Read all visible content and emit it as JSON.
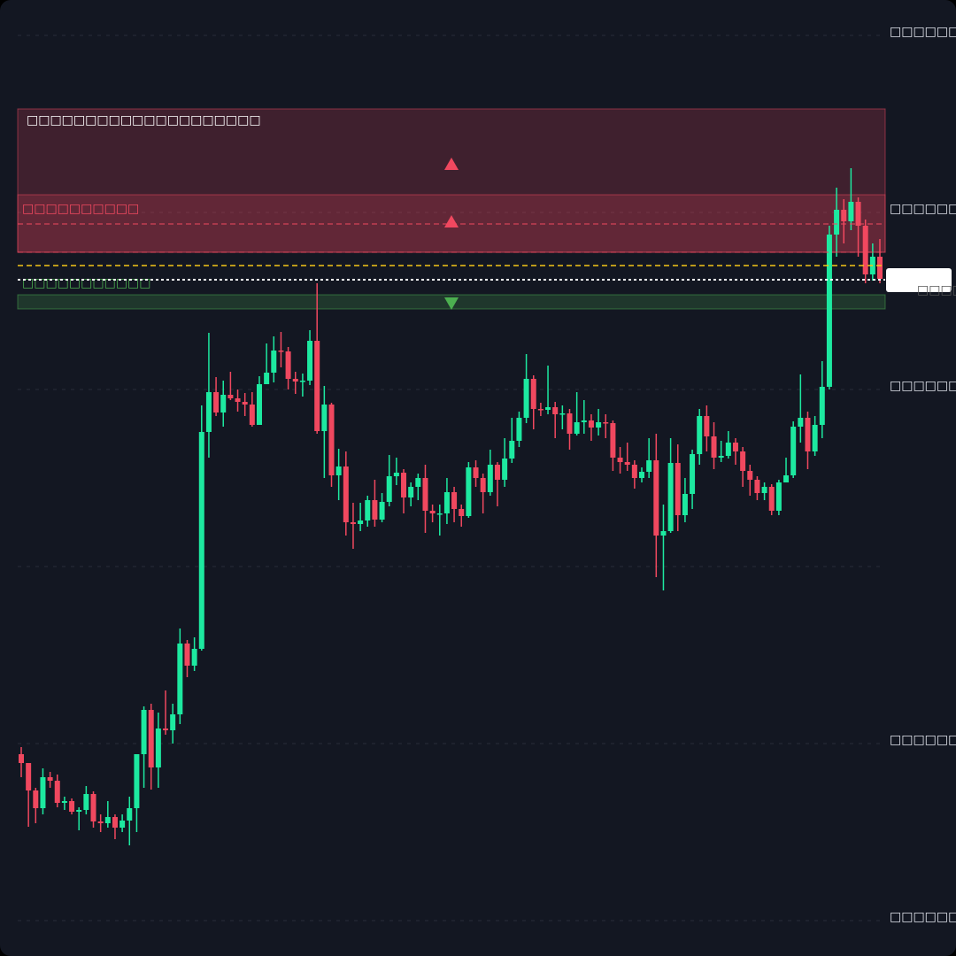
{
  "chart_data": {
    "type": "candlestick",
    "ylim": [
      0,
      1080
    ],
    "yticks": [
      {
        "value": 40,
        "label": "□□□□□□"
      },
      {
        "value": 240,
        "label": "□□□□□□"
      },
      {
        "value": 440,
        "label": null
      },
      {
        "value": 640,
        "label": "□□□□□□"
      },
      {
        "value": 840,
        "label": "□□□□□□"
      },
      {
        "value": 1040,
        "label": "□□□□□□"
      }
    ],
    "grid": true,
    "up_color": "#1de9a0",
    "down_color": "#f0485f",
    "series": [
      {
        "open": [
          228,
          218,
          187,
          167,
          202,
          198,
          173,
          175,
          163,
          165,
          183,
          152,
          150,
          157,
          145,
          153,
          167,
          228,
          278,
          213,
          257,
          255,
          273,
          353,
          328,
          347,
          592,
          637,
          614,
          634,
          630,
          626,
          623,
          600,
          646,
          659,
          684,
          683,
          652,
          649,
          650,
          695,
          593,
          623,
          543,
          553,
          490,
          488,
          492,
          515,
          493,
          513,
          542,
          546,
          518,
          530,
          540,
          503,
          500,
          500,
          524,
          505,
          497,
          552,
          540,
          524,
          555,
          538,
          562,
          582,
          608,
          652,
          618,
          617,
          620,
          612,
          613,
          590,
          603,
          605,
          597,
          603,
          602,
          563,
          558,
          555,
          540,
          547,
          560,
          475,
          480,
          557,
          498,
          522,
          567,
          610,
          587,
          563,
          565,
          580,
          570,
          548,
          538,
          523,
          530,
          503,
          535,
          543,
          598,
          608,
          570,
          600,
          643,
          815,
          843,
          830,
          852,
          825,
          770,
          790
        ],
        "close": [
          218,
          187,
          167,
          202,
          198,
          173,
          175,
          163,
          165,
          183,
          152,
          150,
          157,
          145,
          153,
          167,
          228,
          278,
          213,
          257,
          255,
          273,
          353,
          328,
          347,
          592,
          637,
          614,
          634,
          630,
          626,
          623,
          600,
          646,
          659,
          684,
          683,
          652,
          649,
          650,
          695,
          593,
          623,
          543,
          553,
          490,
          488,
          492,
          515,
          493,
          513,
          542,
          546,
          518,
          530,
          540,
          503,
          500,
          500,
          524,
          505,
          497,
          552,
          540,
          524,
          555,
          538,
          562,
          582,
          608,
          652,
          618,
          617,
          620,
          612,
          613,
          590,
          603,
          605,
          597,
          603,
          602,
          563,
          558,
          555,
          540,
          547,
          560,
          475,
          480,
          557,
          498,
          522,
          567,
          610,
          587,
          563,
          565,
          580,
          570,
          548,
          538,
          523,
          530,
          503,
          535,
          543,
          598,
          608,
          570,
          600,
          643,
          815,
          843,
          830,
          852,
          825,
          770,
          790,
          765
        ],
        "high": [
          236,
          218,
          190,
          212,
          208,
          205,
          180,
          178,
          168,
          192,
          186,
          160,
          175,
          160,
          160,
          180,
          228,
          282,
          285,
          275,
          300,
          285,
          370,
          357,
          360,
          622,
          704,
          654,
          650,
          660,
          640,
          636,
          637,
          655,
          692,
          700,
          705,
          688,
          660,
          658,
          707,
          760,
          644,
          625,
          573,
          570,
          512,
          512,
          520,
          538,
          523,
          566,
          563,
          550,
          535,
          545,
          555,
          510,
          510,
          540,
          530,
          510,
          558,
          560,
          545,
          572,
          558,
          585,
          608,
          615,
          680,
          656,
          625,
          667,
          626,
          622,
          618,
          637,
          628,
          612,
          618,
          612,
          605,
          575,
          580,
          560,
          552,
          585,
          590,
          510,
          585,
          578,
          540,
          572,
          618,
          622,
          603,
          582,
          593,
          585,
          575,
          555,
          542,
          535,
          533,
          538,
          563,
          604,
          657,
          615,
          610,
          672,
          825,
          868,
          855,
          890,
          857,
          832,
          805,
          810
        ],
        "low": [
          202,
          146,
          150,
          160,
          190,
          168,
          165,
          160,
          142,
          160,
          145,
          140,
          145,
          132,
          140,
          125,
          140,
          190,
          188,
          190,
          250,
          240,
          262,
          315,
          322,
          345,
          563,
          610,
          598,
          628,
          615,
          610,
          598,
          600,
          650,
          648,
          665,
          640,
          635,
          632,
          645,
          590,
          540,
          530,
          515,
          475,
          460,
          480,
          485,
          485,
          490,
          508,
          532,
          500,
          508,
          515,
          478,
          490,
          475,
          488,
          490,
          485,
          495,
          530,
          500,
          520,
          508,
          530,
          557,
          575,
          602,
          595,
          610,
          612,
          585,
          595,
          572,
          588,
          590,
          582,
          588,
          585,
          548,
          545,
          548,
          528,
          535,
          540,
          428,
          413,
          478,
          480,
          490,
          505,
          555,
          570,
          550,
          558,
          562,
          555,
          530,
          520,
          515,
          515,
          498,
          498,
          538,
          540,
          580,
          550,
          565,
          585,
          640,
          790,
          805,
          820,
          790,
          760,
          763,
          760
        ]
      }
    ],
    "zones": [
      {
        "label": "□□□□□□□□□□□□□□□□□□□□",
        "top": 957,
        "bottom": 795,
        "color": "#f0485f"
      },
      {
        "label": "□□□□□□□□□□",
        "top": 860,
        "bottom": 795,
        "color": "#f0485f"
      },
      {
        "label": "□□□□□□□□□□□",
        "top": 747,
        "bottom": 731,
        "color": "#4caf50"
      }
    ],
    "lines": [
      {
        "value": 827,
        "color": "#f0485f"
      },
      {
        "value": 795,
        "color": "#f0485f"
      },
      {
        "value": 780,
        "color": "#f5c518"
      },
      {
        "value": 764,
        "color": "#ffffff",
        "label": "□□□□"
      }
    ],
    "markers": [
      {
        "value": 895,
        "direction": "up",
        "color": "#f0485f"
      },
      {
        "value": 830,
        "direction": "up",
        "color": "#f0485f"
      },
      {
        "value": 737,
        "direction": "down",
        "color": "#4caf50"
      }
    ]
  }
}
